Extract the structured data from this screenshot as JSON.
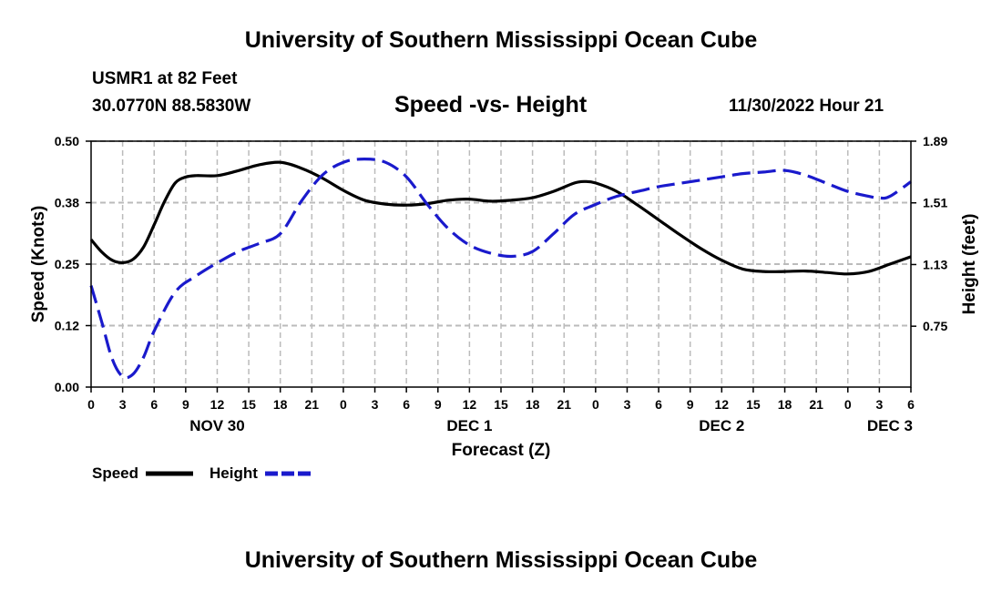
{
  "header": {
    "title": "University of Southern Mississippi Ocean Cube",
    "station": "USMR1 at 82 Feet",
    "coords": "30.0770N  88.5830W",
    "datetime": "11/30/2022 Hour 21"
  },
  "footer": {
    "title": "University of Southern Mississippi Ocean Cube"
  },
  "legend": {
    "speed_label": "Speed",
    "height_label": "Height"
  },
  "colors": {
    "speed": "#000000",
    "height": "#1a1acc",
    "grid": "#bbbbbb"
  },
  "chart_data": {
    "type": "line",
    "title": "Speed -vs- Height",
    "xlabel": "Forecast (Z)",
    "ylabel": "Speed (Knots)",
    "y2label": "Height (feet)",
    "xlim": [
      0,
      78
    ],
    "ylim": [
      0,
      0.5
    ],
    "y2lim": [
      0.375,
      1.89
    ],
    "grid": true,
    "yticks": [
      {
        "value": 0.0,
        "label": "0.00"
      },
      {
        "value": 0.125,
        "label": "0.12"
      },
      {
        "value": 0.25,
        "label": "0.25"
      },
      {
        "value": 0.375,
        "label": "0.38"
      },
      {
        "value": 0.5,
        "label": "0.50"
      }
    ],
    "y2ticks": [
      {
        "value": 0.75,
        "label": "0.75"
      },
      {
        "value": 1.13,
        "label": "1.13"
      },
      {
        "value": 1.51,
        "label": "1.51"
      },
      {
        "value": 1.89,
        "label": "1.89"
      }
    ],
    "xticks": [
      {
        "value": 0,
        "label": "0"
      },
      {
        "value": 3,
        "label": "3"
      },
      {
        "value": 6,
        "label": "6"
      },
      {
        "value": 9,
        "label": "9"
      },
      {
        "value": 12,
        "label": "12"
      },
      {
        "value": 15,
        "label": "15"
      },
      {
        "value": 18,
        "label": "18"
      },
      {
        "value": 21,
        "label": "21"
      },
      {
        "value": 24,
        "label": "0"
      },
      {
        "value": 27,
        "label": "3"
      },
      {
        "value": 30,
        "label": "6"
      },
      {
        "value": 33,
        "label": "9"
      },
      {
        "value": 36,
        "label": "12"
      },
      {
        "value": 39,
        "label": "15"
      },
      {
        "value": 42,
        "label": "18"
      },
      {
        "value": 45,
        "label": "21"
      },
      {
        "value": 48,
        "label": "0"
      },
      {
        "value": 51,
        "label": "3"
      },
      {
        "value": 54,
        "label": "6"
      },
      {
        "value": 57,
        "label": "9"
      },
      {
        "value": 60,
        "label": "12"
      },
      {
        "value": 63,
        "label": "15"
      },
      {
        "value": 66,
        "label": "18"
      },
      {
        "value": 69,
        "label": "21"
      },
      {
        "value": 72,
        "label": "0"
      },
      {
        "value": 75,
        "label": "3"
      },
      {
        "value": 78,
        "label": "6"
      }
    ],
    "day_labels": [
      {
        "value": 12,
        "label": "NOV 30"
      },
      {
        "value": 36,
        "label": "DEC 1"
      },
      {
        "value": 60,
        "label": "DEC 2"
      },
      {
        "value": 76,
        "label": "DEC 3"
      }
    ],
    "series": [
      {
        "name": "Speed",
        "axis": "left",
        "style": "solid",
        "x": [
          0,
          1,
          2,
          3,
          4,
          5,
          6,
          7,
          8,
          9,
          10,
          12,
          14,
          16,
          18,
          20,
          22,
          24,
          26,
          28,
          30,
          32,
          34,
          36,
          38,
          40,
          42,
          44,
          46,
          47,
          48,
          50,
          52,
          54,
          56,
          58,
          60,
          62,
          64,
          66,
          68,
          70,
          72,
          74,
          76,
          78
        ],
        "values": [
          0.3,
          0.275,
          0.258,
          0.253,
          0.26,
          0.285,
          0.33,
          0.378,
          0.415,
          0.427,
          0.43,
          0.43,
          0.44,
          0.452,
          0.457,
          0.445,
          0.425,
          0.4,
          0.38,
          0.372,
          0.37,
          0.373,
          0.38,
          0.382,
          0.378,
          0.38,
          0.385,
          0.398,
          0.415,
          0.418,
          0.415,
          0.398,
          0.37,
          0.34,
          0.31,
          0.282,
          0.258,
          0.24,
          0.235,
          0.235,
          0.236,
          0.233,
          0.23,
          0.235,
          0.25,
          0.265
        ]
      },
      {
        "name": "Height",
        "axis": "right",
        "style": "dashed",
        "x": [
          0,
          1,
          2,
          3,
          4,
          5,
          6,
          8,
          10,
          12,
          14,
          16,
          18,
          20,
          22,
          24,
          26,
          28,
          30,
          32,
          34,
          36,
          38,
          40,
          42,
          44,
          46,
          48,
          50,
          52,
          54,
          56,
          58,
          60,
          62,
          64,
          66,
          68,
          70,
          72,
          74,
          75,
          76,
          78
        ],
        "values": [
          1.0,
          0.78,
          0.55,
          0.44,
          0.455,
          0.56,
          0.72,
          0.96,
          1.06,
          1.14,
          1.21,
          1.26,
          1.32,
          1.52,
          1.68,
          1.76,
          1.78,
          1.76,
          1.67,
          1.5,
          1.35,
          1.25,
          1.2,
          1.18,
          1.21,
          1.32,
          1.44,
          1.5,
          1.55,
          1.58,
          1.61,
          1.63,
          1.65,
          1.67,
          1.69,
          1.7,
          1.71,
          1.68,
          1.63,
          1.58,
          1.55,
          1.54,
          1.55,
          1.64
        ]
      }
    ]
  }
}
